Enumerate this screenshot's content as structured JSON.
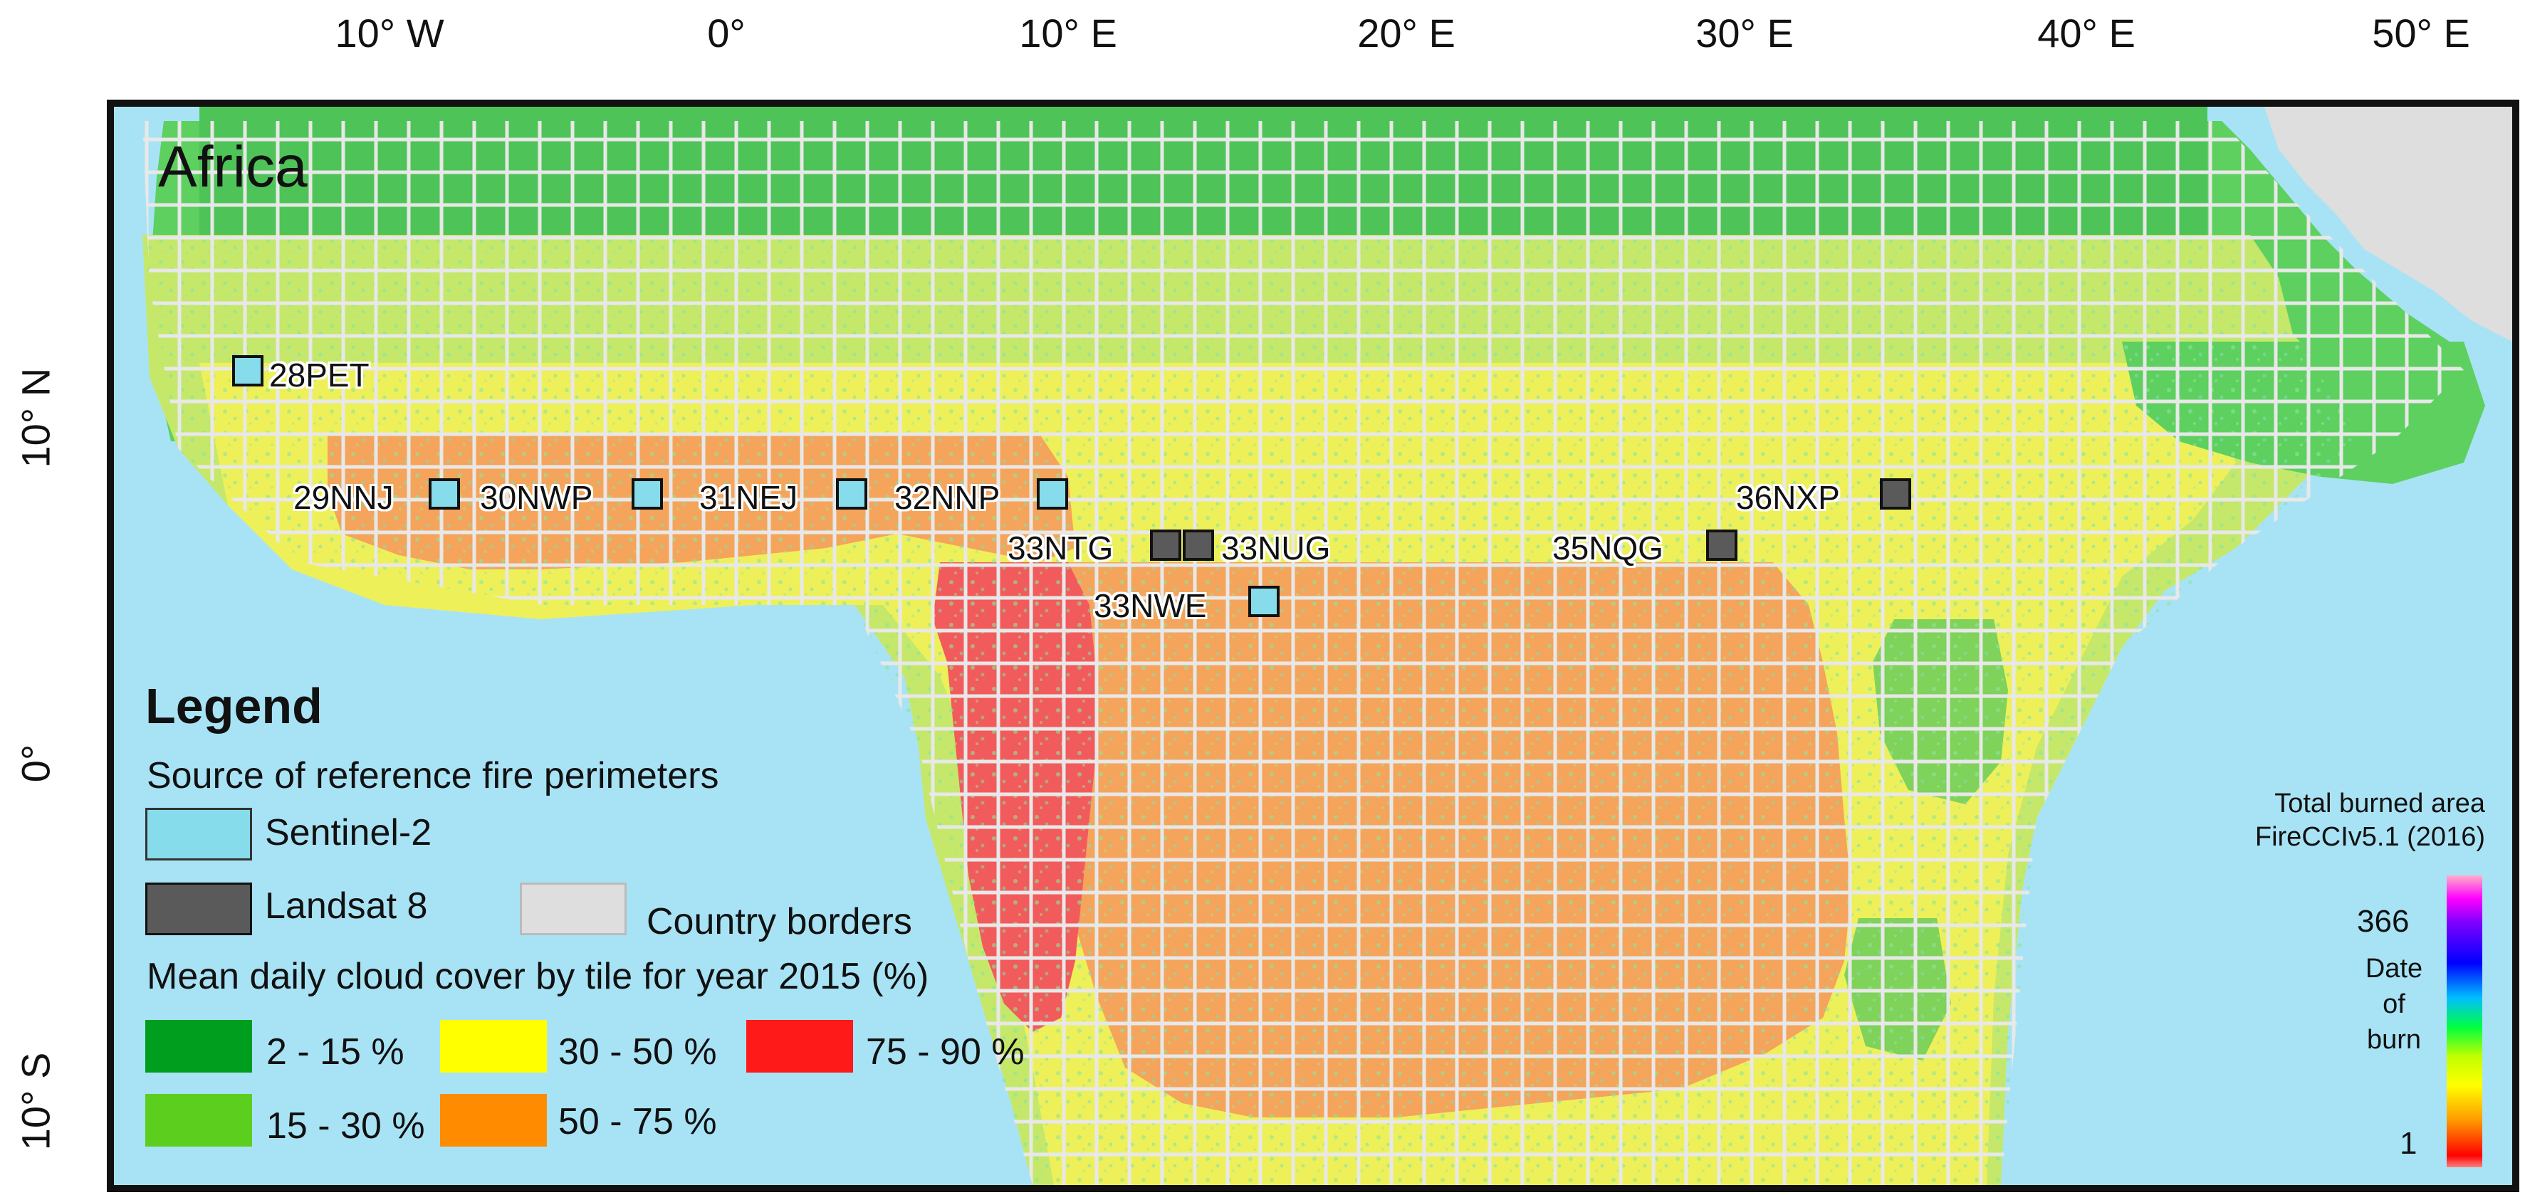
{
  "axes": {
    "longitude_ticks": [
      "10° W",
      "0°",
      "10° E",
      "20° E",
      "30° E",
      "40° E",
      "50° E"
    ],
    "latitude_ticks": [
      "10° N",
      "0°",
      "10° S"
    ]
  },
  "map": {
    "title": "Africa",
    "tiles": [
      {
        "id": "28PET",
        "source": "Sentinel-2"
      },
      {
        "id": "29NNJ",
        "source": "Sentinel-2"
      },
      {
        "id": "30NWP",
        "source": "Sentinel-2"
      },
      {
        "id": "31NEJ",
        "source": "Sentinel-2"
      },
      {
        "id": "32NNP",
        "source": "Sentinel-2"
      },
      {
        "id": "33NTG",
        "source": "Landsat 8"
      },
      {
        "id": "33NUG",
        "source": "Landsat 8"
      },
      {
        "id": "33NWE",
        "source": "Sentinel-2"
      },
      {
        "id": "35NQG",
        "source": "Landsat 8"
      },
      {
        "id": "36NXP",
        "source": "Landsat 8"
      }
    ]
  },
  "legend": {
    "title": "Legend",
    "source_heading": "Source of reference fire perimeters",
    "sentinel_label": "Sentinel-2",
    "landsat_label": "Landsat 8",
    "borders_label": "Country borders",
    "cloud_heading": "Mean daily cloud cover by tile for year 2015 (%)",
    "cloud_classes": [
      {
        "label": "2 - 15 %",
        "color": "#009e1f"
      },
      {
        "label": "15 - 30 %",
        "color": "#5ccf1e"
      },
      {
        "label": "30 - 50 %",
        "color": "#ffff00"
      },
      {
        "label": "50 - 75 %",
        "color": "#ff8c00"
      },
      {
        "label": "75 - 90 %",
        "color": "#ff1a1a"
      }
    ],
    "colors": {
      "sentinel": "#86dcea",
      "landsat": "#5a5a5a",
      "borders": "#dedede",
      "ocean": "#a8e3f5"
    }
  },
  "burn_legend": {
    "title_line1": "Total burned area",
    "title_line2": "FireCCIv5.1 (2016)",
    "max_value": "366",
    "min_value": "1",
    "label_line1": "Date",
    "label_line2": "of",
    "label_line3": "burn"
  }
}
